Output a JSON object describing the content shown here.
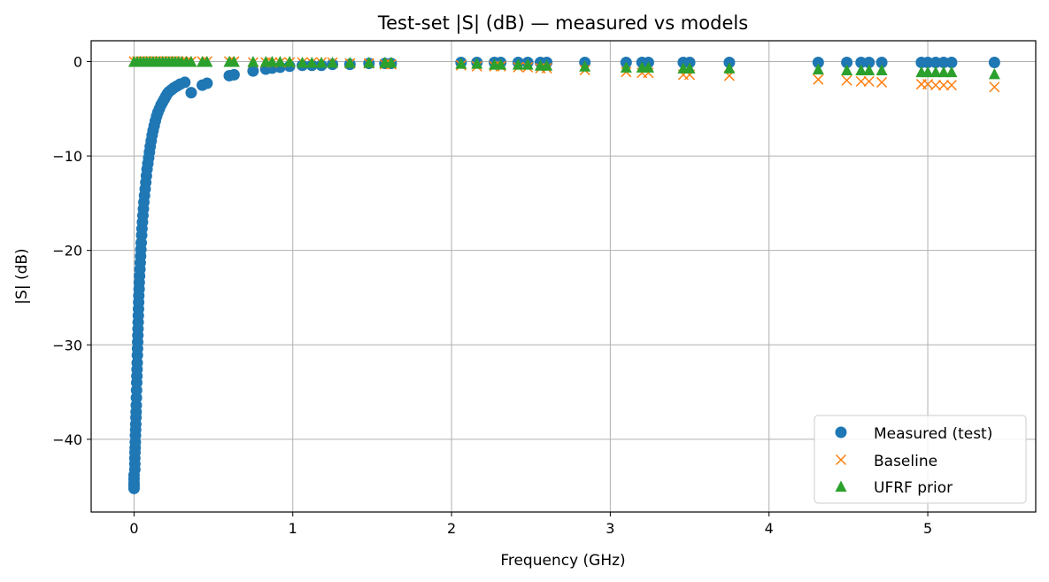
{
  "chart_data": {
    "type": "scatter",
    "title": "Test-set |S| (dB) — measured vs models",
    "xlabel": "Frequency (GHz)",
    "ylabel": "|S| (dB)",
    "xlim": [
      -0.27,
      5.68
    ],
    "ylim": [
      -47.7,
      2.2
    ],
    "xticks": [
      0,
      1,
      2,
      3,
      4,
      5
    ],
    "yticks": [
      0,
      -10,
      -20,
      -30,
      -40
    ],
    "xtick_labels": [
      "0",
      "1",
      "2",
      "3",
      "4",
      "5"
    ],
    "ytick_labels": [
      "0",
      "−10",
      "−20",
      "−30",
      "−40"
    ],
    "grid": true,
    "legend_position": "lower-right",
    "series": [
      {
        "name": "Measured (test)",
        "marker": "circle",
        "color": "#1f77b4",
        "points": [
          [
            0.0,
            -45.2
          ],
          [
            0.0,
            -44.9
          ],
          [
            0.0,
            -44.6
          ],
          [
            0.0,
            -44.2
          ],
          [
            0.0,
            -43.8
          ],
          [
            0.005,
            -43.2
          ],
          [
            0.005,
            -42.6
          ],
          [
            0.005,
            -42.0
          ],
          [
            0.006,
            -41.4
          ],
          [
            0.007,
            -40.9
          ],
          [
            0.008,
            -40.3
          ],
          [
            0.009,
            -39.6
          ],
          [
            0.01,
            -39.0
          ],
          [
            0.011,
            -38.4
          ],
          [
            0.012,
            -37.7
          ],
          [
            0.013,
            -37.1
          ],
          [
            0.014,
            -36.4
          ],
          [
            0.015,
            -35.6
          ],
          [
            0.016,
            -34.8
          ],
          [
            0.017,
            -34.0
          ],
          [
            0.018,
            -33.3
          ],
          [
            0.019,
            -32.6
          ],
          [
            0.02,
            -31.9
          ],
          [
            0.021,
            -31.1
          ],
          [
            0.022,
            -30.4
          ],
          [
            0.023,
            -29.7
          ],
          [
            0.024,
            -29.0
          ],
          [
            0.025,
            -28.3
          ],
          [
            0.026,
            -27.6
          ],
          [
            0.027,
            -26.9
          ],
          [
            0.028,
            -26.2
          ],
          [
            0.029,
            -25.5
          ],
          [
            0.03,
            -24.8
          ],
          [
            0.032,
            -24.1
          ],
          [
            0.033,
            -23.4
          ],
          [
            0.035,
            -22.7
          ],
          [
            0.037,
            -22.0
          ],
          [
            0.039,
            -21.3
          ],
          [
            0.041,
            -20.6
          ],
          [
            0.043,
            -19.9
          ],
          [
            0.045,
            -19.2
          ],
          [
            0.048,
            -18.4
          ],
          [
            0.05,
            -17.7
          ],
          [
            0.053,
            -17.0
          ],
          [
            0.056,
            -16.3
          ],
          [
            0.059,
            -15.6
          ],
          [
            0.062,
            -14.9
          ],
          [
            0.066,
            -14.2
          ],
          [
            0.07,
            -13.5
          ],
          [
            0.074,
            -12.8
          ],
          [
            0.078,
            -12.1
          ],
          [
            0.082,
            -11.4
          ],
          [
            0.087,
            -10.8
          ],
          [
            0.092,
            -10.2
          ],
          [
            0.097,
            -9.6
          ],
          [
            0.102,
            -9.0
          ],
          [
            0.108,
            -8.4
          ],
          [
            0.114,
            -7.8
          ],
          [
            0.12,
            -7.3
          ],
          [
            0.127,
            -6.8
          ],
          [
            0.134,
            -6.3
          ],
          [
            0.142,
            -5.8
          ],
          [
            0.15,
            -5.4
          ],
          [
            0.16,
            -5.0
          ],
          [
            0.17,
            -4.6
          ],
          [
            0.18,
            -4.3
          ],
          [
            0.19,
            -4.0
          ],
          [
            0.2,
            -3.7
          ],
          [
            0.21,
            -3.4
          ],
          [
            0.22,
            -3.2
          ],
          [
            0.235,
            -3.0
          ],
          [
            0.25,
            -2.8
          ],
          [
            0.27,
            -2.6
          ],
          [
            0.29,
            -2.4
          ],
          [
            0.32,
            -2.2
          ],
          [
            0.36,
            -3.3
          ],
          [
            0.43,
            -2.5
          ],
          [
            0.46,
            -2.3
          ],
          [
            0.6,
            -1.5
          ],
          [
            0.63,
            -1.4
          ],
          [
            0.75,
            -1.0
          ],
          [
            0.83,
            -0.8
          ],
          [
            0.87,
            -0.7
          ],
          [
            0.92,
            -0.6
          ],
          [
            0.98,
            -0.5
          ],
          [
            1.06,
            -0.4
          ],
          [
            1.12,
            -0.4
          ],
          [
            1.18,
            -0.4
          ],
          [
            1.25,
            -0.3
          ],
          [
            1.36,
            -0.3
          ],
          [
            1.48,
            -0.2
          ],
          [
            1.58,
            -0.2
          ],
          [
            1.62,
            -0.2
          ],
          [
            2.06,
            -0.1
          ],
          [
            2.16,
            -0.1
          ],
          [
            2.27,
            -0.1
          ],
          [
            2.31,
            -0.1
          ],
          [
            2.42,
            -0.1
          ],
          [
            2.48,
            -0.1
          ],
          [
            2.56,
            -0.1
          ],
          [
            2.6,
            -0.1
          ],
          [
            2.84,
            -0.1
          ],
          [
            3.1,
            -0.1
          ],
          [
            3.2,
            -0.1
          ],
          [
            3.24,
            -0.1
          ],
          [
            3.46,
            -0.1
          ],
          [
            3.5,
            -0.1
          ],
          [
            3.75,
            -0.1
          ],
          [
            4.31,
            -0.1
          ],
          [
            4.49,
            -0.1
          ],
          [
            4.58,
            -0.1
          ],
          [
            4.63,
            -0.1
          ],
          [
            4.71,
            -0.1
          ],
          [
            4.96,
            -0.1
          ],
          [
            5.0,
            -0.1
          ],
          [
            5.05,
            -0.1
          ],
          [
            5.1,
            -0.1
          ],
          [
            5.15,
            -0.1
          ],
          [
            5.42,
            -0.1
          ]
        ]
      },
      {
        "name": "Baseline",
        "marker": "x",
        "color": "#ff7f0e",
        "points": [
          [
            0.0,
            0.0
          ],
          [
            0.02,
            0.0
          ],
          [
            0.04,
            0.0
          ],
          [
            0.06,
            0.0
          ],
          [
            0.08,
            0.0
          ],
          [
            0.1,
            0.0
          ],
          [
            0.12,
            0.0
          ],
          [
            0.14,
            0.0
          ],
          [
            0.16,
            0.0
          ],
          [
            0.18,
            0.0
          ],
          [
            0.2,
            0.0
          ],
          [
            0.22,
            0.0
          ],
          [
            0.24,
            0.0
          ],
          [
            0.26,
            0.0
          ],
          [
            0.28,
            0.0
          ],
          [
            0.3,
            0.0
          ],
          [
            0.33,
            0.0
          ],
          [
            0.36,
            0.0
          ],
          [
            0.43,
            0.0
          ],
          [
            0.46,
            0.0
          ],
          [
            0.6,
            0.0
          ],
          [
            0.63,
            0.0
          ],
          [
            0.75,
            -0.1
          ],
          [
            0.83,
            -0.1
          ],
          [
            0.87,
            -0.1
          ],
          [
            0.92,
            -0.1
          ],
          [
            0.98,
            -0.1
          ],
          [
            1.06,
            -0.1
          ],
          [
            1.12,
            -0.1
          ],
          [
            1.18,
            -0.1
          ],
          [
            1.25,
            -0.1
          ],
          [
            1.36,
            -0.2
          ],
          [
            1.48,
            -0.2
          ],
          [
            1.58,
            -0.3
          ],
          [
            1.62,
            -0.3
          ],
          [
            2.06,
            -0.4
          ],
          [
            2.16,
            -0.5
          ],
          [
            2.27,
            -0.5
          ],
          [
            2.31,
            -0.5
          ],
          [
            2.42,
            -0.6
          ],
          [
            2.48,
            -0.6
          ],
          [
            2.56,
            -0.7
          ],
          [
            2.6,
            -0.7
          ],
          [
            2.84,
            -0.9
          ],
          [
            3.1,
            -1.1
          ],
          [
            3.2,
            -1.2
          ],
          [
            3.24,
            -1.2
          ],
          [
            3.46,
            -1.4
          ],
          [
            3.5,
            -1.4
          ],
          [
            3.75,
            -1.5
          ],
          [
            4.31,
            -1.9
          ],
          [
            4.49,
            -2.0
          ],
          [
            4.58,
            -2.1
          ],
          [
            4.63,
            -2.1
          ],
          [
            4.71,
            -2.2
          ],
          [
            4.96,
            -2.4
          ],
          [
            5.0,
            -2.4
          ],
          [
            5.05,
            -2.5
          ],
          [
            5.1,
            -2.5
          ],
          [
            5.15,
            -2.5
          ],
          [
            5.42,
            -2.7
          ]
        ]
      },
      {
        "name": "UFRF prior",
        "marker": "triangle",
        "color": "#2ca02c",
        "points": [
          [
            0.0,
            0.0
          ],
          [
            0.02,
            0.0
          ],
          [
            0.04,
            0.0
          ],
          [
            0.06,
            0.0
          ],
          [
            0.08,
            0.0
          ],
          [
            0.1,
            0.0
          ],
          [
            0.12,
            0.0
          ],
          [
            0.14,
            0.0
          ],
          [
            0.16,
            0.0
          ],
          [
            0.18,
            0.0
          ],
          [
            0.2,
            0.0
          ],
          [
            0.22,
            0.0
          ],
          [
            0.24,
            0.0
          ],
          [
            0.26,
            0.0
          ],
          [
            0.28,
            0.0
          ],
          [
            0.3,
            0.0
          ],
          [
            0.33,
            0.0
          ],
          [
            0.36,
            0.0
          ],
          [
            0.43,
            0.0
          ],
          [
            0.46,
            0.0
          ],
          [
            0.6,
            0.0
          ],
          [
            0.63,
            0.0
          ],
          [
            0.75,
            0.0
          ],
          [
            0.83,
            0.0
          ],
          [
            0.87,
            0.0
          ],
          [
            0.92,
            0.0
          ],
          [
            0.98,
            0.0
          ],
          [
            1.06,
            -0.1
          ],
          [
            1.12,
            -0.1
          ],
          [
            1.18,
            -0.1
          ],
          [
            1.25,
            -0.1
          ],
          [
            1.36,
            -0.1
          ],
          [
            1.48,
            -0.1
          ],
          [
            1.58,
            -0.1
          ],
          [
            1.62,
            -0.1
          ],
          [
            2.06,
            -0.2
          ],
          [
            2.16,
            -0.2
          ],
          [
            2.27,
            -0.3
          ],
          [
            2.31,
            -0.3
          ],
          [
            2.42,
            -0.3
          ],
          [
            2.48,
            -0.3
          ],
          [
            2.56,
            -0.4
          ],
          [
            2.6,
            -0.4
          ],
          [
            2.84,
            -0.5
          ],
          [
            3.1,
            -0.6
          ],
          [
            3.2,
            -0.6
          ],
          [
            3.24,
            -0.6
          ],
          [
            3.46,
            -0.7
          ],
          [
            3.5,
            -0.7
          ],
          [
            3.75,
            -0.7
          ],
          [
            4.31,
            -0.8
          ],
          [
            4.49,
            -0.9
          ],
          [
            4.58,
            -0.9
          ],
          [
            4.63,
            -0.9
          ],
          [
            4.71,
            -0.9
          ],
          [
            4.96,
            -1.1
          ],
          [
            5.0,
            -1.1
          ],
          [
            5.05,
            -1.1
          ],
          [
            5.1,
            -1.1
          ],
          [
            5.15,
            -1.1
          ],
          [
            5.42,
            -1.3
          ]
        ]
      }
    ]
  }
}
